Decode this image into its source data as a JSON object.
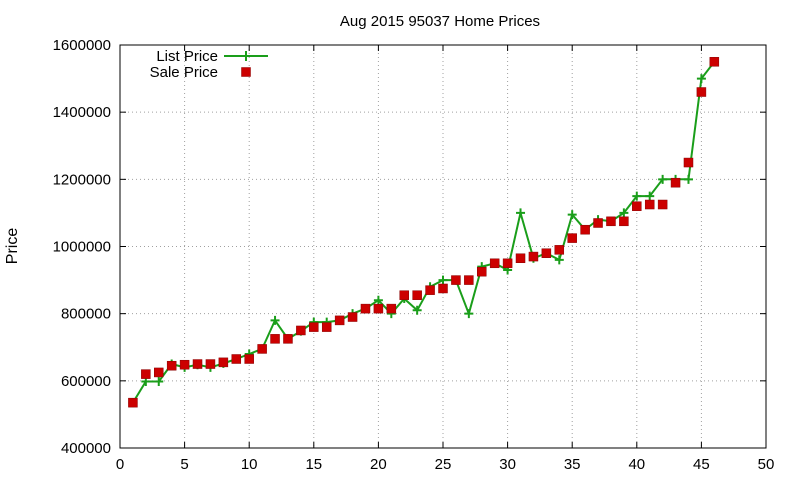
{
  "chart_data": {
    "type": "line",
    "title": "Aug 2015 95037 Home Prices",
    "xlabel": "",
    "ylabel": "Price",
    "xlim": [
      0,
      50
    ],
    "ylim": [
      400000,
      1600000
    ],
    "xticks": [
      0,
      5,
      10,
      15,
      20,
      25,
      30,
      35,
      40,
      45,
      50
    ],
    "yticks": [
      400000,
      600000,
      800000,
      1000000,
      1200000,
      1400000,
      1600000
    ],
    "grid": true,
    "legend_position": "top-left",
    "series": [
      {
        "name": "List Price",
        "style": "line+plus",
        "color": "#1a9e1a",
        "x": [
          1,
          2,
          3,
          4,
          5,
          6,
          7,
          8,
          9,
          10,
          11,
          12,
          13,
          14,
          15,
          16,
          17,
          18,
          19,
          20,
          21,
          22,
          23,
          24,
          25,
          26,
          27,
          28,
          29,
          30,
          31,
          32,
          33,
          34,
          35,
          36,
          37,
          38,
          39,
          40,
          41,
          42,
          43,
          44,
          45,
          46
        ],
        "values": [
          535000,
          598000,
          598000,
          650000,
          640000,
          648000,
          640000,
          652000,
          665000,
          680000,
          695000,
          780000,
          725000,
          748000,
          775000,
          775000,
          780000,
          800000,
          815000,
          840000,
          800000,
          845000,
          810000,
          880000,
          900000,
          900000,
          800000,
          940000,
          950000,
          930000,
          1100000,
          965000,
          980000,
          960000,
          1095000,
          1050000,
          1080000,
          1075000,
          1100000,
          1150000,
          1150000,
          1200000,
          1200000,
          1200000,
          1500000,
          1550000
        ]
      },
      {
        "name": "Sale Price",
        "style": "square",
        "color": "#cc0000",
        "x": [
          1,
          2,
          3,
          4,
          5,
          6,
          7,
          8,
          9,
          10,
          11,
          12,
          13,
          14,
          15,
          16,
          17,
          18,
          19,
          20,
          21,
          22,
          23,
          24,
          25,
          26,
          27,
          28,
          29,
          30,
          31,
          32,
          33,
          34,
          35,
          36,
          37,
          38,
          39,
          40,
          41,
          42,
          43,
          44,
          45,
          46
        ],
        "values": [
          535000,
          620000,
          625000,
          645000,
          648000,
          650000,
          650000,
          655000,
          665000,
          665000,
          695000,
          725000,
          725000,
          750000,
          760000,
          760000,
          780000,
          790000,
          815000,
          815000,
          815000,
          855000,
          855000,
          870000,
          875000,
          900000,
          900000,
          925000,
          950000,
          950000,
          965000,
          970000,
          980000,
          990000,
          1025000,
          1050000,
          1070000,
          1075000,
          1075000,
          1120000,
          1125000,
          1125000,
          1190000,
          1250000,
          1460000,
          1550000
        ]
      }
    ]
  }
}
